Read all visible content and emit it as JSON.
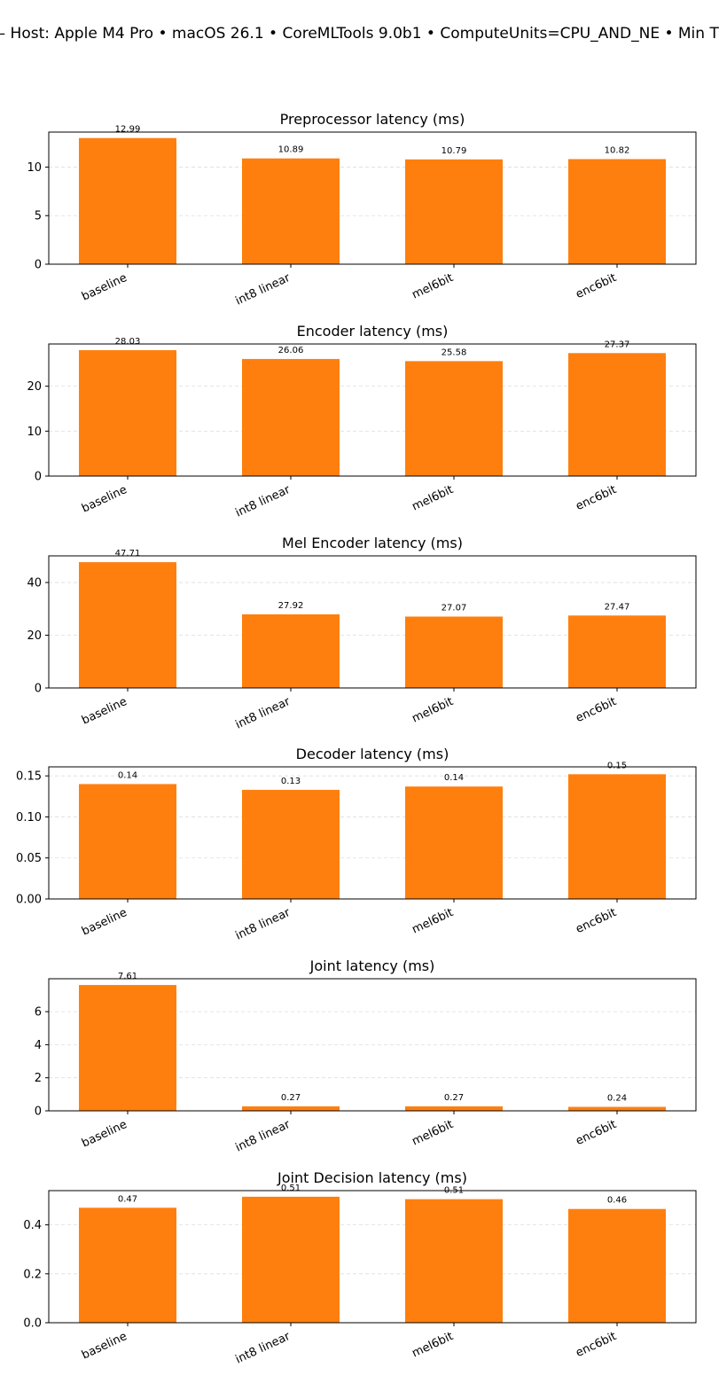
{
  "figure": {
    "title": "— Host: Apple M4 Pro • macOS 26.1 • CoreMLTools 9.0b1 • ComputeUnits=CPU_AND_NE • Min T"
  },
  "colors": {
    "bar": "#ff7f0e",
    "grid": "#dddddd",
    "axis": "#000000"
  },
  "chart_data": [
    {
      "type": "bar",
      "title": "Preprocessor latency (ms)",
      "categories": [
        "baseline",
        "int8 linear",
        "mel6bit",
        "enc6bit"
      ],
      "values": [
        12.99,
        10.89,
        10.79,
        10.82
      ],
      "value_labels": [
        "12.99",
        "10.89",
        "10.79",
        "10.82"
      ],
      "ylim": [
        0,
        13.6
      ],
      "yticks": [
        0,
        5,
        10
      ],
      "ytick_labels": [
        "0",
        "5",
        "10"
      ],
      "grid": "y, dashed"
    },
    {
      "type": "bar",
      "title": "Encoder latency (ms)",
      "categories": [
        "baseline",
        "int8 linear",
        "mel6bit",
        "enc6bit"
      ],
      "values": [
        28.03,
        26.06,
        25.58,
        27.37
      ],
      "value_labels": [
        "28.03",
        "26.06",
        "25.58",
        "27.37"
      ],
      "ylim": [
        0,
        29.4
      ],
      "yticks": [
        0,
        10,
        20
      ],
      "ytick_labels": [
        "0",
        "10",
        "20"
      ],
      "grid": "y, dashed"
    },
    {
      "type": "bar",
      "title": "Mel Encoder latency (ms)",
      "categories": [
        "baseline",
        "int8 linear",
        "mel6bit",
        "enc6bit"
      ],
      "values": [
        47.71,
        27.92,
        27.07,
        27.47
      ],
      "value_labels": [
        "47.71",
        "27.92",
        "27.07",
        "27.47"
      ],
      "ylim": [
        0,
        50.1
      ],
      "yticks": [
        0,
        20,
        40
      ],
      "ytick_labels": [
        "0",
        "20",
        "40"
      ],
      "grid": "y, dashed"
    },
    {
      "type": "bar",
      "title": "Decoder latency (ms)",
      "categories": [
        "baseline",
        "int8 linear",
        "mel6bit",
        "enc6bit"
      ],
      "values": [
        0.14,
        0.133,
        0.137,
        0.152
      ],
      "value_labels": [
        "0.14",
        "0.13",
        "0.14",
        "0.15"
      ],
      "ylim": [
        0,
        0.161
      ],
      "yticks": [
        0,
        0.05,
        0.1,
        0.15
      ],
      "ytick_labels": [
        "0.00",
        "0.05",
        "0.10",
        "0.15"
      ],
      "grid": "y, dashed"
    },
    {
      "type": "bar",
      "title": "Joint latency (ms)",
      "categories": [
        "baseline",
        "int8 linear",
        "mel6bit",
        "enc6bit"
      ],
      "values": [
        7.61,
        0.27,
        0.27,
        0.24
      ],
      "value_labels": [
        "7.61",
        "0.27",
        "0.27",
        "0.24"
      ],
      "ylim": [
        0,
        7.99
      ],
      "yticks": [
        0,
        2,
        4,
        6
      ],
      "ytick_labels": [
        "0",
        "2",
        "4",
        "6"
      ],
      "grid": "y, dashed"
    },
    {
      "type": "bar",
      "title": "Joint Decision latency (ms)",
      "categories": [
        "baseline",
        "int8 linear",
        "mel6bit",
        "enc6bit"
      ],
      "values": [
        0.47,
        0.515,
        0.505,
        0.465
      ],
      "value_labels": [
        "0.47",
        "0.51",
        "0.51",
        "0.46"
      ],
      "ylim": [
        0,
        0.54
      ],
      "yticks": [
        0,
        0.2,
        0.4
      ],
      "ytick_labels": [
        "0.0",
        "0.2",
        "0.4"
      ],
      "grid": "y, dashed"
    }
  ]
}
